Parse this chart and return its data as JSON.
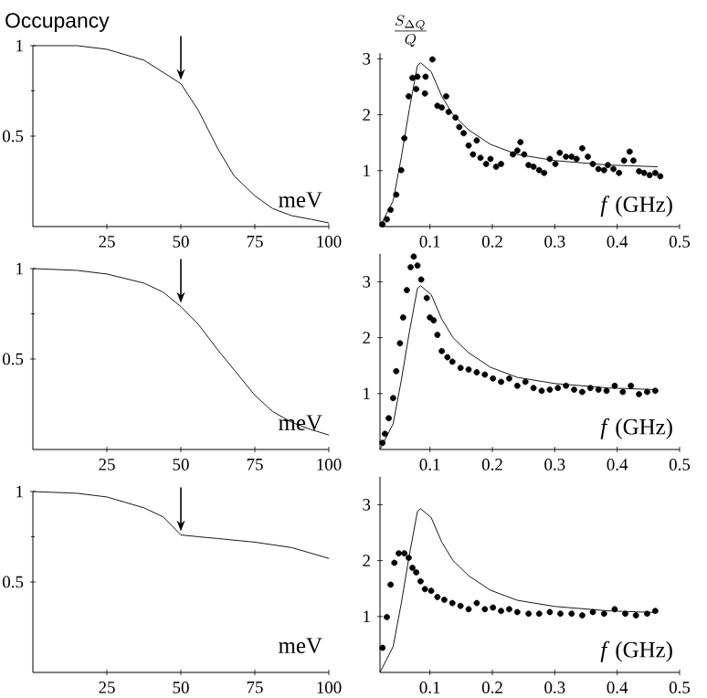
{
  "chart_data": [
    {
      "type": "line",
      "title": "Occupancy",
      "xlabel": "meV",
      "xlim": [
        0,
        100
      ],
      "ylim": [
        0,
        1
      ],
      "xticks": [
        25,
        50,
        75,
        100
      ],
      "yticks": [
        0.5,
        1
      ],
      "marker": "none",
      "color": "#000000",
      "x": [
        0,
        15,
        25,
        37.5,
        50,
        56,
        62.5,
        68,
        75,
        81,
        87.5,
        94,
        100
      ],
      "values": [
        1,
        1,
        0.98,
        0.92,
        0.79,
        0.64,
        0.43,
        0.28,
        0.17,
        0.1,
        0.06,
        0.04,
        0.02
      ]
    },
    {
      "type": "scatter",
      "ylabel": "\\frac{S_{\\Delta Q}}{Q}",
      "xlabel": "*f* (GHz)",
      "xlim": [
        0.02,
        0.5
      ],
      "ylim": [
        0,
        3.1
      ],
      "xticks": [
        0.1,
        0.2,
        0.3,
        0.4,
        0.5
      ],
      "yticks": [
        1,
        2,
        3
      ],
      "series": [
        {
          "type": "scatter",
          "marker": "circle",
          "color": "#000000",
          "x": [
            0.024,
            0.031,
            0.037,
            0.046,
            0.054,
            0.059,
            0.066,
            0.072,
            0.078,
            0.08,
            0.092,
            0.093,
            0.104,
            0.112,
            0.119,
            0.126,
            0.13,
            0.141,
            0.147,
            0.154,
            0.162,
            0.169,
            0.175,
            0.181,
            0.19,
            0.197,
            0.206,
            0.214,
            0.233,
            0.24,
            0.245,
            0.251,
            0.258,
            0.266,
            0.275,
            0.283,
            0.292,
            0.301,
            0.308,
            0.318,
            0.327,
            0.335,
            0.344,
            0.353,
            0.361,
            0.37,
            0.379,
            0.385,
            0.394,
            0.403,
            0.411,
            0.42,
            0.426,
            0.435,
            0.443,
            0.452,
            0.461,
            0.469
          ],
          "values": [
            0.04,
            0.13,
            0.3,
            0.57,
            1.01,
            1.58,
            2.33,
            2.66,
            2.46,
            2.68,
            2.38,
            2.68,
            2.99,
            2.16,
            2.13,
            2.33,
            2.05,
            1.95,
            1.78,
            1.67,
            1.45,
            1.29,
            1.54,
            1.23,
            1.12,
            1.21,
            1.07,
            1.12,
            1.29,
            1.36,
            1.51,
            1.29,
            1.1,
            1.07,
            1.01,
            0.96,
            1.21,
            1.12,
            1.32,
            1.25,
            1.25,
            1.21,
            1.4,
            1.25,
            1.12,
            1.03,
            1.01,
            1.1,
            1.03,
            0.96,
            1.18,
            1.34,
            1.18,
            0.99,
            0.96,
            0.92,
            0.96,
            0.9
          ]
        },
        {
          "type": "line",
          "marker": "none",
          "color": "#000000",
          "x": [
            0.02,
            0.041,
            0.054,
            0.067,
            0.08,
            0.085,
            0.102,
            0.119,
            0.137,
            0.162,
            0.197,
            0.24,
            0.3,
            0.387,
            0.465
          ],
          "values": [
            0,
            0.46,
            1.23,
            2.1,
            2.88,
            2.93,
            2.77,
            2.33,
            2.0,
            1.73,
            1.47,
            1.29,
            1.18,
            1.1,
            1.07
          ]
        }
      ]
    },
    {
      "type": "line",
      "xlabel": "meV",
      "xlim": [
        0,
        100
      ],
      "ylim": [
        0,
        1
      ],
      "xticks": [
        25,
        50,
        75,
        100
      ],
      "yticks": [
        0.5,
        1
      ],
      "marker": "none",
      "color": "#000000",
      "x": [
        0,
        15,
        25,
        37.5,
        44,
        50,
        56,
        62.5,
        69,
        75,
        81,
        87.5,
        94,
        100
      ],
      "values": [
        1,
        0.99,
        0.97,
        0.92,
        0.87,
        0.79,
        0.69,
        0.55,
        0.42,
        0.3,
        0.21,
        0.15,
        0.11,
        0.08
      ]
    },
    {
      "type": "scatter",
      "xlabel": "*f* (GHz)",
      "xlim": [
        0.02,
        0.5
      ],
      "ylim": [
        0,
        3.5
      ],
      "xticks": [
        0.1,
        0.2,
        0.3,
        0.4,
        0.5
      ],
      "yticks": [
        1,
        2,
        3
      ],
      "series": [
        {
          "type": "scatter",
          "marker": "circle",
          "color": "#000000",
          "x": [
            0.024,
            0.028,
            0.034,
            0.041,
            0.046,
            0.052,
            0.057,
            0.063,
            0.069,
            0.074,
            0.08,
            0.086,
            0.095,
            0.1,
            0.106,
            0.112,
            0.119,
            0.128,
            0.136,
            0.149,
            0.162,
            0.175,
            0.188,
            0.201,
            0.214,
            0.227,
            0.24,
            0.253,
            0.266,
            0.279,
            0.292,
            0.305,
            0.318,
            0.331,
            0.344,
            0.357,
            0.37,
            0.383,
            0.396,
            0.409,
            0.422,
            0.435,
            0.448,
            0.461
          ],
          "values": [
            0.12,
            0.28,
            0.56,
            0.92,
            1.4,
            1.9,
            2.36,
            2.85,
            3.26,
            3.45,
            3.29,
            3.04,
            2.71,
            2.36,
            2.31,
            2.05,
            1.76,
            1.65,
            1.57,
            1.46,
            1.43,
            1.38,
            1.34,
            1.27,
            1.21,
            1.27,
            1.14,
            1.21,
            1.1,
            1.05,
            1.07,
            1.1,
            1.14,
            1.07,
            1.03,
            1.1,
            1.07,
            1.05,
            1.14,
            1.03,
            1.14,
            0.99,
            1.03,
            1.05
          ]
        },
        {
          "type": "line",
          "marker": "none",
          "color": "#000000",
          "x": [
            0.02,
            0.041,
            0.054,
            0.067,
            0.08,
            0.085,
            0.102,
            0.119,
            0.137,
            0.162,
            0.197,
            0.24,
            0.3,
            0.387,
            0.465
          ],
          "values": [
            0,
            0.46,
            1.23,
            2.1,
            2.88,
            2.93,
            2.77,
            2.33,
            2.0,
            1.73,
            1.47,
            1.29,
            1.18,
            1.1,
            1.07
          ]
        }
      ]
    },
    {
      "type": "line",
      "xlabel": "meV",
      "xlim": [
        0,
        100
      ],
      "ylim": [
        0,
        1
      ],
      "xticks": [
        25,
        50,
        75,
        100
      ],
      "yticks": [
        0.5,
        1
      ],
      "marker": "none",
      "color": "#000000",
      "x": [
        0,
        15,
        25,
        37.5,
        44,
        50,
        56,
        62.5,
        75,
        87.5,
        100
      ],
      "values": [
        1,
        0.99,
        0.97,
        0.91,
        0.86,
        0.76,
        0.75,
        0.74,
        0.72,
        0.69,
        0.63
      ]
    },
    {
      "type": "scatter",
      "xlabel": "*f* (GHz)",
      "xlim": [
        0.02,
        0.5
      ],
      "ylim": [
        0,
        3.5
      ],
      "xticks": [
        0.1,
        0.2,
        0.3,
        0.4,
        0.5
      ],
      "yticks": [
        1,
        2,
        3
      ],
      "series": [
        {
          "type": "scatter",
          "marker": "circle",
          "color": "#000000",
          "x": [
            0.024,
            0.031,
            0.037,
            0.043,
            0.05,
            0.059,
            0.066,
            0.072,
            0.078,
            0.085,
            0.092,
            0.102,
            0.112,
            0.123,
            0.136,
            0.149,
            0.162,
            0.175,
            0.188,
            0.201,
            0.214,
            0.227,
            0.24,
            0.258,
            0.275,
            0.292,
            0.309,
            0.327,
            0.344,
            0.361,
            0.379,
            0.396,
            0.413,
            0.43,
            0.448,
            0.461
          ],
          "values": [
            0.44,
            0.99,
            1.57,
            1.96,
            2.13,
            2.13,
            2.05,
            1.87,
            1.79,
            1.63,
            1.49,
            1.46,
            1.35,
            1.3,
            1.24,
            1.19,
            1.13,
            1.24,
            1.13,
            1.16,
            1.1,
            1.13,
            1.08,
            1.05,
            1.05,
            1.08,
            1.05,
            1.05,
            1.02,
            1.08,
            1.05,
            1.13,
            1.05,
            1.02,
            1.05,
            1.1
          ]
        },
        {
          "type": "line",
          "marker": "none",
          "color": "#000000",
          "x": [
            0.02,
            0.041,
            0.054,
            0.067,
            0.08,
            0.085,
            0.102,
            0.119,
            0.137,
            0.162,
            0.197,
            0.24,
            0.3,
            0.387,
            0.465
          ],
          "values": [
            0,
            0.46,
            1.23,
            2.1,
            2.88,
            2.93,
            2.77,
            2.33,
            2.0,
            1.73,
            1.47,
            1.29,
            1.18,
            1.1,
            1.07
          ]
        }
      ]
    }
  ]
}
